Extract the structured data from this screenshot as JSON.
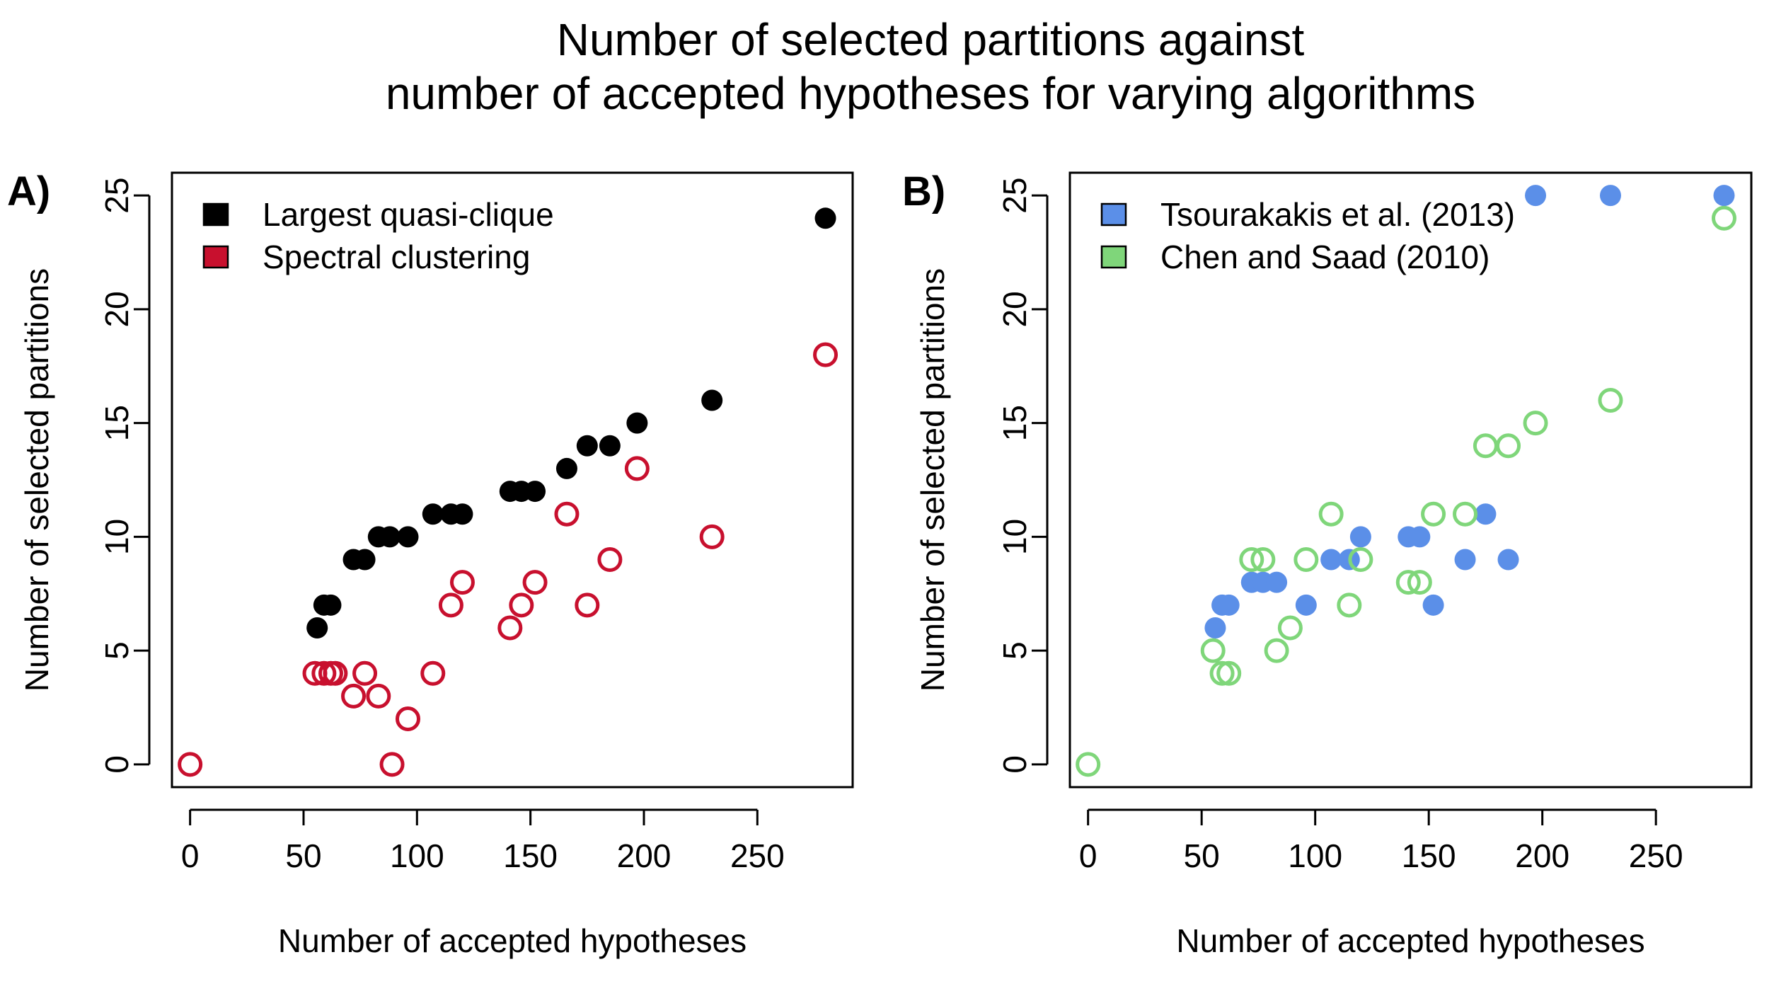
{
  "title": {
    "line1": "Number of selected partitions against",
    "line2": "number of accepted hypotheses for varying algorithms"
  },
  "chart_data": [
    {
      "type": "scatter",
      "panel_label": "A)",
      "xlabel": "Number of accepted hypotheses",
      "ylabel": "Number of selected partitions",
      "xlim": [
        -8,
        292
      ],
      "ylim": [
        -1,
        26
      ],
      "xticks": [
        0,
        50,
        100,
        150,
        200,
        250
      ],
      "yticks": [
        0,
        5,
        10,
        15,
        20,
        25
      ],
      "legend_position": "top-left",
      "series": [
        {
          "name": "Largest quasi-clique",
          "color": "#000000",
          "marker": "filled-circle",
          "points": [
            [
              56,
              6
            ],
            [
              59,
              7
            ],
            [
              62,
              7
            ],
            [
              72,
              9
            ],
            [
              77,
              9
            ],
            [
              83,
              10
            ],
            [
              88,
              10
            ],
            [
              96,
              10
            ],
            [
              107,
              11
            ],
            [
              115,
              11
            ],
            [
              120,
              11
            ],
            [
              141,
              12
            ],
            [
              146,
              12
            ],
            [
              152,
              12
            ],
            [
              166,
              13
            ],
            [
              175,
              14
            ],
            [
              185,
              14
            ],
            [
              197,
              15
            ],
            [
              230,
              16
            ],
            [
              280,
              24
            ]
          ]
        },
        {
          "name": "Spectral clustering",
          "color": "#c8102e",
          "marker": "open-circle",
          "points": [
            [
              0,
              0
            ],
            [
              55,
              4
            ],
            [
              59,
              4
            ],
            [
              62,
              4
            ],
            [
              64,
              4
            ],
            [
              72,
              3
            ],
            [
              77,
              4
            ],
            [
              83,
              3
            ],
            [
              89,
              0
            ],
            [
              96,
              2
            ],
            [
              107,
              4
            ],
            [
              115,
              7
            ],
            [
              120,
              8
            ],
            [
              141,
              6
            ],
            [
              146,
              7
            ],
            [
              152,
              8
            ],
            [
              166,
              11
            ],
            [
              175,
              7
            ],
            [
              185,
              9
            ],
            [
              197,
              13
            ],
            [
              230,
              10
            ],
            [
              280,
              18
            ]
          ]
        }
      ]
    },
    {
      "type": "scatter",
      "panel_label": "B)",
      "xlabel": "Number of accepted hypotheses",
      "ylabel": "Number of selected partitions",
      "xlim": [
        -8,
        292
      ],
      "ylim": [
        -1,
        26
      ],
      "xticks": [
        0,
        50,
        100,
        150,
        200,
        250
      ],
      "yticks": [
        0,
        5,
        10,
        15,
        20,
        25
      ],
      "legend_position": "top-left",
      "series": [
        {
          "name": "Tsourakakis et al. (2013)",
          "color": "#5b8fe8",
          "marker": "filled-circle",
          "points": [
            [
              56,
              6
            ],
            [
              59,
              7
            ],
            [
              62,
              7
            ],
            [
              72,
              8
            ],
            [
              77,
              8
            ],
            [
              83,
              8
            ],
            [
              96,
              7
            ],
            [
              107,
              9
            ],
            [
              115,
              9
            ],
            [
              120,
              10
            ],
            [
              141,
              10
            ],
            [
              146,
              10
            ],
            [
              152,
              7
            ],
            [
              166,
              9
            ],
            [
              175,
              11
            ],
            [
              185,
              9
            ],
            [
              197,
              25
            ],
            [
              230,
              25
            ],
            [
              280,
              25
            ]
          ]
        },
        {
          "name": "Chen and Saad (2010)",
          "color": "#7fd67a",
          "marker": "open-circle",
          "points": [
            [
              0,
              0
            ],
            [
              55,
              5
            ],
            [
              59,
              4
            ],
            [
              62,
              4
            ],
            [
              72,
              9
            ],
            [
              77,
              9
            ],
            [
              83,
              5
            ],
            [
              89,
              6
            ],
            [
              96,
              9
            ],
            [
              107,
              11
            ],
            [
              115,
              7
            ],
            [
              120,
              9
            ],
            [
              141,
              8
            ],
            [
              146,
              8
            ],
            [
              152,
              11
            ],
            [
              166,
              11
            ],
            [
              175,
              14
            ],
            [
              185,
              14
            ],
            [
              197,
              15
            ],
            [
              230,
              16
            ],
            [
              280,
              24
            ]
          ]
        }
      ]
    }
  ]
}
